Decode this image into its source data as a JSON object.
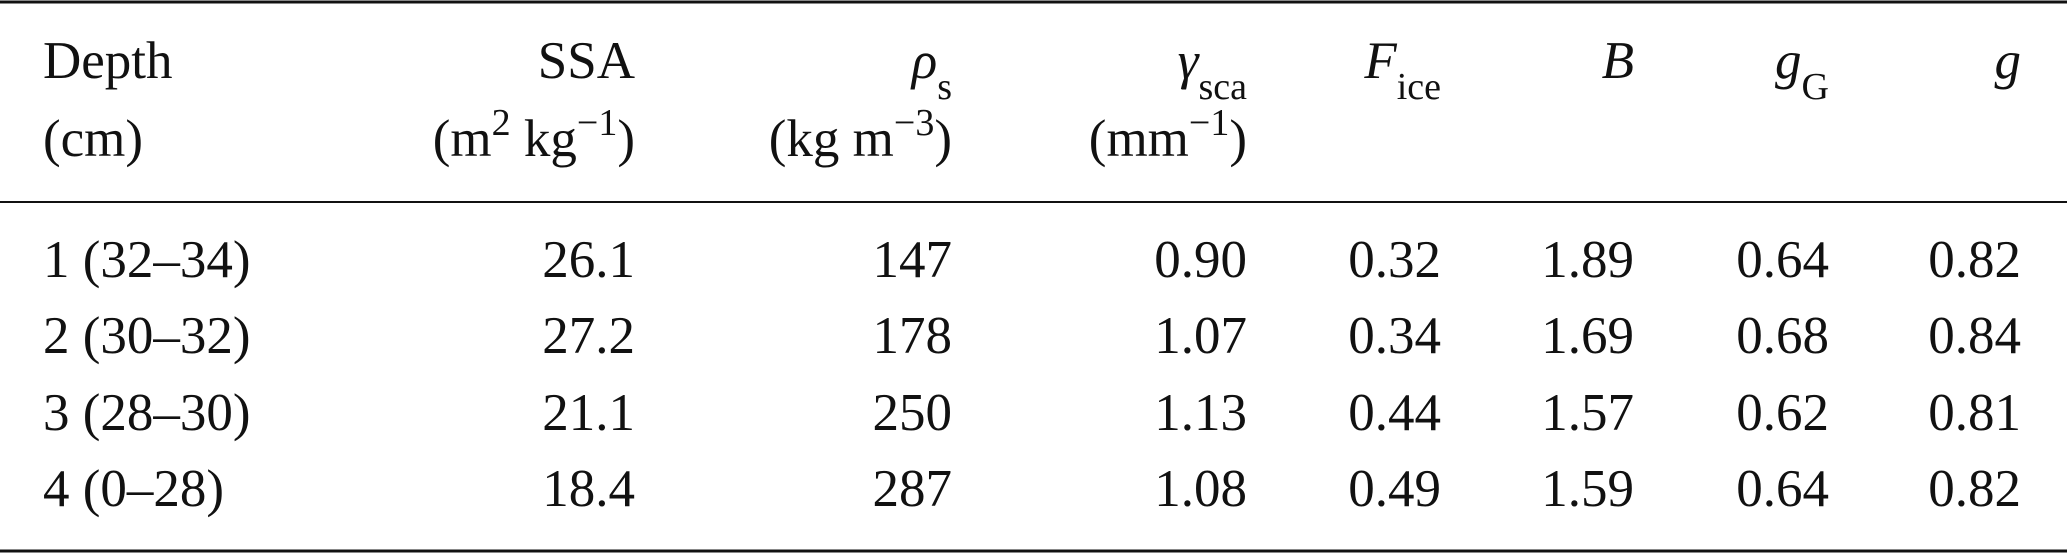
{
  "table": {
    "columns": [
      {
        "name": [
          {
            "text": "Depth"
          }
        ],
        "units": [
          {
            "text": "(cm)"
          }
        ]
      },
      {
        "name": [
          {
            "text": "SSA"
          }
        ],
        "units": [
          {
            "text": "(m"
          },
          {
            "sup": "2"
          },
          {
            "text": " kg"
          },
          {
            "sup": "−1"
          },
          {
            "text": ")"
          }
        ]
      },
      {
        "name": [
          {
            "text": "ρ",
            "style": "italic"
          },
          {
            "sub": "s"
          }
        ],
        "units": [
          {
            "text": "(kg m"
          },
          {
            "sup": "−3"
          },
          {
            "text": ")"
          }
        ]
      },
      {
        "name": [
          {
            "text": "γ",
            "style": "italic"
          },
          {
            "sub": "sca"
          }
        ],
        "units": [
          {
            "text": "(mm"
          },
          {
            "sup": "−1"
          },
          {
            "text": ")"
          }
        ]
      },
      {
        "name": [
          {
            "text": "F",
            "style": "italic"
          },
          {
            "sub": "ice"
          }
        ],
        "units": []
      },
      {
        "name": [
          {
            "text": "B",
            "style": "italic"
          }
        ],
        "units": []
      },
      {
        "name": [
          {
            "text": "g",
            "style": "italic"
          },
          {
            "sub": "G"
          }
        ],
        "units": []
      },
      {
        "name": [
          {
            "text": "g",
            "style": "italic"
          }
        ],
        "units": []
      }
    ],
    "rows": [
      [
        "1 (32–34)",
        "26.1",
        "147",
        "0.90",
        "0.32",
        "1.89",
        "0.64",
        "0.82"
      ],
      [
        "2 (30–32)",
        "27.2",
        "178",
        "1.07",
        "0.34",
        "1.69",
        "0.68",
        "0.84"
      ],
      [
        "3 (28–30)",
        "21.1",
        "250",
        "1.13",
        "0.44",
        "1.57",
        "0.62",
        "0.81"
      ],
      [
        "4 (0–28)",
        "18.4",
        "287",
        "1.08",
        "0.49",
        "1.59",
        "0.64",
        "0.82"
      ]
    ]
  }
}
